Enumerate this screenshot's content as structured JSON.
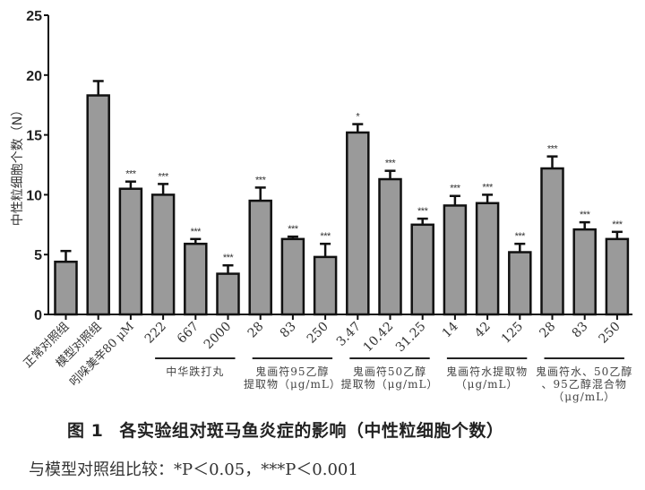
{
  "chart_data": {
    "type": "bar",
    "title": "图 1 各实验组对斑马鱼炎症的影响（中性粒细胞个数）",
    "xlabel": "",
    "ylabel": "中性粒细胞个数（N）",
    "ylim": [
      0,
      25
    ],
    "yticks": [
      0,
      5,
      10,
      15,
      20,
      25
    ],
    "grid": false,
    "legend": null,
    "bar_color": "#9a9a9a",
    "categories": [
      "正常对照组",
      "模型对照组",
      "吲哚美辛80 μM",
      "222",
      "667",
      "2000",
      "28",
      "83",
      "250",
      "3.47",
      "10.42",
      "31.25",
      "14",
      "42",
      "125",
      "28",
      "83",
      "250"
    ],
    "values": [
      4.4,
      18.3,
      10.5,
      10.0,
      5.9,
      3.4,
      9.5,
      6.3,
      4.8,
      15.2,
      11.3,
      7.5,
      9.1,
      9.3,
      5.2,
      12.2,
      7.1,
      6.3
    ],
    "error_upper": [
      5.3,
      19.5,
      11.1,
      10.9,
      6.3,
      4.1,
      10.6,
      6.5,
      5.9,
      15.9,
      12.0,
      8.0,
      9.9,
      10.0,
      5.9,
      13.2,
      7.7,
      6.9
    ],
    "significance": [
      "",
      "",
      "***",
      "***",
      "***",
      "***",
      "***",
      "***",
      "***",
      "*",
      "***",
      "***",
      "***",
      "***",
      "***",
      "***",
      "***",
      "***"
    ],
    "groups": [
      {
        "label_lines": [
          "中华跌打丸"
        ],
        "from": 3,
        "to": 5
      },
      {
        "label_lines": [
          "鬼画符95乙醇",
          "提取物（μg/mL）"
        ],
        "from": 6,
        "to": 8
      },
      {
        "label_lines": [
          "鬼画符50乙醇",
          "提取物（μg/mL）"
        ],
        "from": 9,
        "to": 11
      },
      {
        "label_lines": [
          "鬼画符水提取物",
          "（μg/mL）"
        ],
        "from": 12,
        "to": 14
      },
      {
        "label_lines": [
          "鬼画符水、50乙醇",
          "、95乙醇混合物",
          "（μg/mL）"
        ],
        "from": 15,
        "to": 17
      }
    ]
  },
  "caption": {
    "figure_number": "图 1",
    "title": "各实验组对斑马鱼炎症的影响（中性粒细胞个数）"
  },
  "note": "与模型对照组比较：*P＜0.05，***P＜0.001"
}
